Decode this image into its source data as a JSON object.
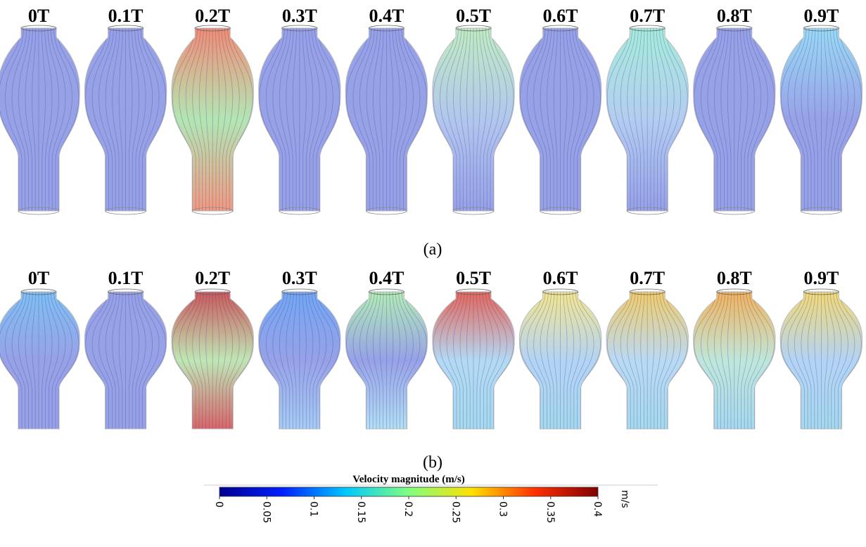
{
  "panels": [
    {
      "labels": [
        "0T",
        "0.1T",
        "0.2T",
        "0.3T",
        "0.4T",
        "0.5T",
        "0.6T",
        "0.7T",
        "0.8T",
        "0.9T"
      ],
      "caption": "(a)"
    },
    {
      "labels": [
        "0T",
        "0.1T",
        "0.2T",
        "0.3T",
        "0.4T",
        "0.5T",
        "0.6T",
        "0.7T",
        "0.8T",
        "0.9T"
      ],
      "caption": "(b)"
    }
  ],
  "colorbar": {
    "title": "Velocity magnitude (m/s)",
    "lim": [
      0,
      0.4
    ],
    "ticks": [
      0,
      0.05,
      0.1,
      0.15,
      0.2,
      0.25,
      0.3,
      0.35,
      0.4
    ],
    "unit": "m/s",
    "colors": [
      "#00008f",
      "#0020ff",
      "#00c8ff",
      "#7fff7f",
      "#ffe000",
      "#ff3000",
      "#800000"
    ]
  }
}
